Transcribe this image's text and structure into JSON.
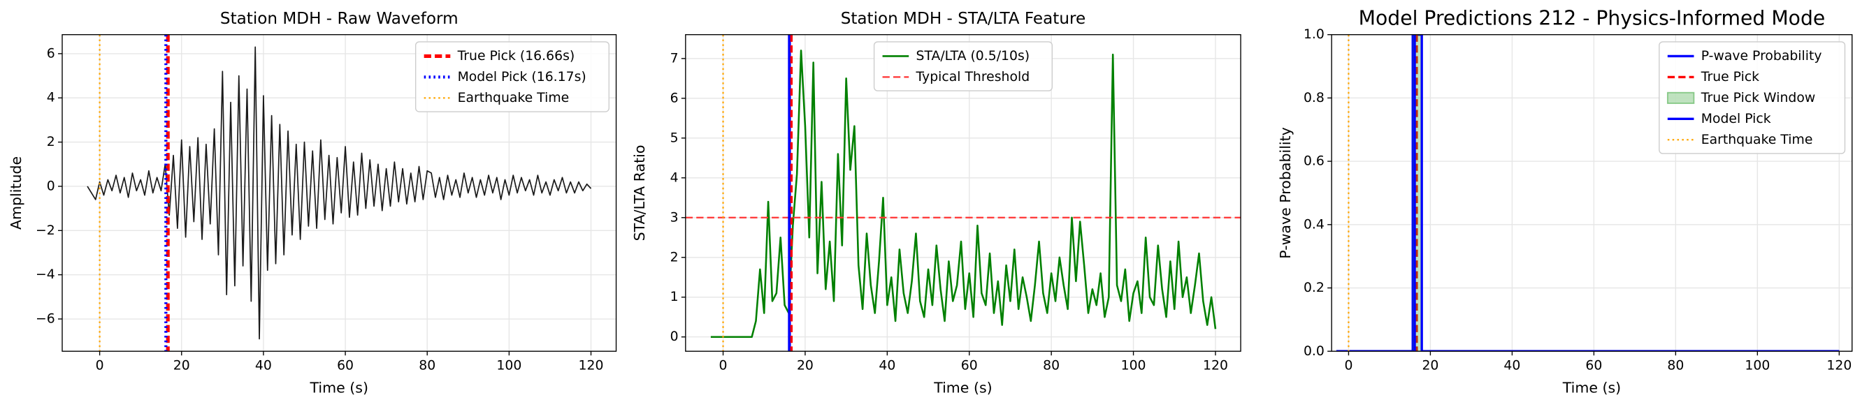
{
  "chart_data": [
    {
      "type": "line",
      "title": "Station MDH - Raw Waveform",
      "xlabel": "Time (s)",
      "ylabel": "Amplitude",
      "xlim": [
        -9.15,
        126.15
      ],
      "ylim": [
        -7.46,
        6.86
      ],
      "grid": true,
      "legend": "upper right",
      "xticks": [
        0,
        20,
        40,
        60,
        80,
        100,
        120
      ],
      "yticks": [
        {
          "value": -6,
          "label": "−6"
        },
        {
          "value": -4,
          "label": "−4"
        },
        {
          "value": -2,
          "label": "−2"
        },
        0,
        2,
        4,
        6
      ],
      "layers": [
        {
          "kind": "line",
          "color": "#1a1a1a",
          "width": 1,
          "dash": "solid",
          "x": [
            -3,
            -2,
            -1,
            0,
            1,
            2,
            3,
            4,
            5,
            6,
            7,
            8,
            9,
            10,
            11,
            12,
            13,
            14,
            15,
            16,
            17,
            18,
            19,
            20,
            21,
            22,
            23,
            24,
            25,
            26,
            27,
            28,
            29,
            30,
            31,
            32,
            33,
            34,
            35,
            36,
            37,
            38,
            39,
            40,
            41,
            42,
            43,
            44,
            45,
            46,
            47,
            48,
            49,
            50,
            51,
            52,
            53,
            54,
            55,
            56,
            57,
            58,
            59,
            60,
            61,
            62,
            63,
            64,
            65,
            66,
            67,
            68,
            69,
            70,
            71,
            72,
            73,
            74,
            75,
            76,
            77,
            78,
            79,
            80,
            81,
            82,
            83,
            84,
            85,
            86,
            87,
            88,
            89,
            90,
            91,
            92,
            93,
            94,
            95,
            96,
            97,
            98,
            99,
            100,
            101,
            102,
            103,
            104,
            105,
            106,
            107,
            108,
            109,
            110,
            111,
            112,
            113,
            114,
            115,
            116,
            117,
            118,
            119,
            120
          ],
          "values": [
            0,
            -0.3,
            -0.6,
            0.2,
            -0.4,
            0.3,
            -0.2,
            0.5,
            -0.3,
            0.4,
            -0.5,
            0.6,
            -0.2,
            0.3,
            -0.4,
            0.7,
            -0.3,
            0.4,
            -0.2,
            1.0,
            -1.3,
            1.4,
            -1.9,
            2.1,
            -2.3,
            1.8,
            -1.6,
            2.2,
            -2.4,
            1.9,
            -1.7,
            2.6,
            -3.1,
            5.2,
            -4.9,
            3.8,
            -4.5,
            5.0,
            -3.6,
            4.4,
            -5.2,
            6.3,
            -6.9,
            4.1,
            -3.8,
            3.2,
            -3.5,
            2.8,
            -3.1,
            2.5,
            -2.2,
            1.9,
            -2.4,
            2.0,
            -1.8,
            1.6,
            -1.9,
            2.1,
            -1.5,
            1.4,
            -1.7,
            1.3,
            -1.2,
            1.8,
            -1.4,
            1.1,
            -1.3,
            1.5,
            -1.0,
            1.2,
            -0.9,
            1.0,
            -1.1,
            0.8,
            -0.9,
            1.1,
            -0.7,
            0.8,
            -0.8,
            0.6,
            -0.7,
            0.9,
            -0.6,
            0.7,
            0.6,
            -0.5,
            0.4,
            -0.6,
            0.5,
            -0.4,
            0.3,
            -0.5,
            0.6,
            -0.3,
            0.4,
            -0.5,
            0.3,
            -0.4,
            0.5,
            -0.3,
            0.4,
            -0.6,
            0.3,
            -0.4,
            0.5,
            -0.3,
            0.4,
            -0.2,
            0.3,
            -0.4,
            0.5,
            -0.3,
            0.2,
            -0.4,
            0.3,
            -0.2,
            0.4,
            -0.3,
            0.2,
            -0.3,
            0.2,
            -0.2,
            0.1,
            -0.1
          ]
        },
        {
          "kind": "vline",
          "name": "True Pick (16.66s)",
          "x": 16.66,
          "color": "#ff0000",
          "width": 3,
          "dash": "dashed"
        },
        {
          "kind": "vline",
          "name": "Model Pick (16.17s)",
          "x": 16.17,
          "color": "#0000ff",
          "width": 2.5,
          "dash": "dotted"
        },
        {
          "kind": "vline",
          "name": "Earthquake Time",
          "x": 0,
          "color": "#ffa500",
          "width": 1.3,
          "dash": "dotted"
        }
      ]
    },
    {
      "type": "line",
      "title": "Station MDH - STA/LTA Feature",
      "xlabel": "Time (s)",
      "ylabel": "STA/LTA Ratio",
      "xlim": [
        -9.15,
        126.15
      ],
      "ylim": [
        -0.36,
        7.6
      ],
      "grid": true,
      "legend": "upper center",
      "xticks": [
        0,
        20,
        40,
        60,
        80,
        100,
        120
      ],
      "yticks": [
        0,
        1,
        2,
        3,
        4,
        5,
        6,
        7
      ],
      "layers": [
        {
          "kind": "line",
          "name": "STA/LTA (0.5/10s)",
          "color": "#008000",
          "width": 1.5,
          "dash": "solid",
          "x": [
            -3,
            -2,
            -1,
            0,
            1,
            2,
            3,
            4,
            5,
            6,
            7,
            8,
            9,
            10,
            11,
            12,
            13,
            14,
            15,
            16,
            17,
            18,
            19,
            20,
            21,
            22,
            23,
            24,
            25,
            26,
            27,
            28,
            29,
            30,
            31,
            32,
            33,
            34,
            35,
            36,
            37,
            38,
            39,
            40,
            41,
            42,
            43,
            44,
            45,
            46,
            47,
            48,
            49,
            50,
            51,
            52,
            53,
            54,
            55,
            56,
            57,
            58,
            59,
            60,
            61,
            62,
            63,
            64,
            65,
            66,
            67,
            68,
            69,
            70,
            71,
            72,
            73,
            74,
            75,
            76,
            77,
            78,
            79,
            80,
            81,
            82,
            83,
            84,
            85,
            86,
            87,
            88,
            89,
            90,
            91,
            92,
            93,
            94,
            95,
            96,
            97,
            98,
            99,
            100,
            101,
            102,
            103,
            104,
            105,
            106,
            107,
            108,
            109,
            110,
            111,
            112,
            113,
            114,
            115,
            116,
            117,
            118,
            119,
            120
          ],
          "values": [
            0,
            0,
            0,
            0,
            0,
            0,
            0,
            0,
            0,
            0,
            0,
            0.4,
            1.7,
            0.6,
            3.4,
            0.9,
            1.1,
            2.5,
            0.8,
            0.6,
            2.8,
            4.1,
            7.2,
            5.3,
            2.5,
            6.9,
            1.6,
            3.9,
            1.2,
            2.4,
            0.9,
            4.6,
            2.3,
            6.5,
            4.2,
            5.3,
            1.8,
            0.7,
            2.6,
            1.3,
            0.6,
            1.9,
            3.5,
            0.8,
            1.5,
            0.4,
            2.2,
            1.1,
            0.6,
            1.4,
            2.6,
            0.9,
            0.5,
            1.7,
            0.8,
            2.3,
            1.2,
            0.4,
            1.9,
            0.9,
            1.3,
            2.4,
            0.7,
            1.6,
            0.5,
            2.8,
            1.1,
            0.8,
            2.1,
            0.6,
            1.4,
            0.3,
            1.8,
            0.9,
            2.2,
            0.7,
            1.5,
            1.0,
            0.4,
            1.3,
            2.4,
            1.1,
            0.6,
            1.6,
            0.9,
            2.0,
            1.3,
            0.7,
            3.0,
            1.4,
            2.9,
            1.8,
            0.6,
            1.2,
            0.8,
            1.6,
            0.5,
            1.0,
            7.1,
            1.3,
            0.9,
            1.7,
            0.4,
            1.1,
            1.4,
            0.6,
            2.5,
            1.0,
            0.8,
            2.3,
            1.2,
            0.5,
            1.9,
            0.7,
            2.4,
            1.0,
            1.5,
            0.6,
            1.3,
            2.1,
            0.9,
            0.3,
            1.0,
            0.2
          ]
        },
        {
          "kind": "hline",
          "name": "Typical Threshold",
          "y": 3,
          "color": "#ff3333",
          "width": 1.3,
          "dash": "dashed"
        },
        {
          "kind": "vline",
          "x": 16.17,
          "color": "#0000ff",
          "width": 2.5,
          "dash": "solid"
        },
        {
          "kind": "vline",
          "x": 16.66,
          "color": "#ff0000",
          "width": 2,
          "dash": "dashed"
        },
        {
          "kind": "vline",
          "x": 0,
          "color": "#ffa500",
          "width": 1.3,
          "dash": "dotted"
        }
      ]
    },
    {
      "type": "line",
      "title": "Model Predictions 212 - Physics-Informed Mode",
      "xlabel": "Time (s)",
      "ylabel": "P-wave Probability",
      "xlim": [
        -4.15,
        123.15
      ],
      "ylim": [
        0,
        1
      ],
      "grid": true,
      "legend": "upper right",
      "xticks": [
        0,
        20,
        40,
        60,
        80,
        100,
        120
      ],
      "yticks": [
        {
          "value": 0,
          "label": "0.0"
        },
        {
          "value": 0.2,
          "label": "0.2"
        },
        {
          "value": 0.4,
          "label": "0.4"
        },
        {
          "value": 0.6,
          "label": "0.6"
        },
        {
          "value": 0.8,
          "label": "0.8"
        },
        {
          "value": 1,
          "label": "1.0"
        }
      ],
      "layers": [
        {
          "kind": "line",
          "name": "P-wave Probability",
          "color": "#0000ff",
          "width": 2,
          "dash": "solid",
          "x": [
            -3,
            15.7,
            15.7,
            17.9,
            17.9,
            120
          ],
          "values": [
            0,
            0,
            1,
            1,
            0,
            0
          ]
        },
        {
          "kind": "vline",
          "name": "True Pick",
          "x": 16.66,
          "color": "#ff0000",
          "width": 2,
          "dash": "dashed"
        },
        {
          "kind": "span",
          "name": "True Pick Window",
          "x": [
            15.66,
            17.66
          ],
          "color": "#2ca02c"
        },
        {
          "kind": "vline",
          "name": "Model Pick",
          "x": 16.17,
          "color": "#0000ff",
          "width": 2,
          "dash": "solid"
        },
        {
          "kind": "vline",
          "name": "Earthquake Time",
          "x": 0,
          "color": "#ffa500",
          "width": 1.3,
          "dash": "dotted"
        }
      ]
    }
  ]
}
